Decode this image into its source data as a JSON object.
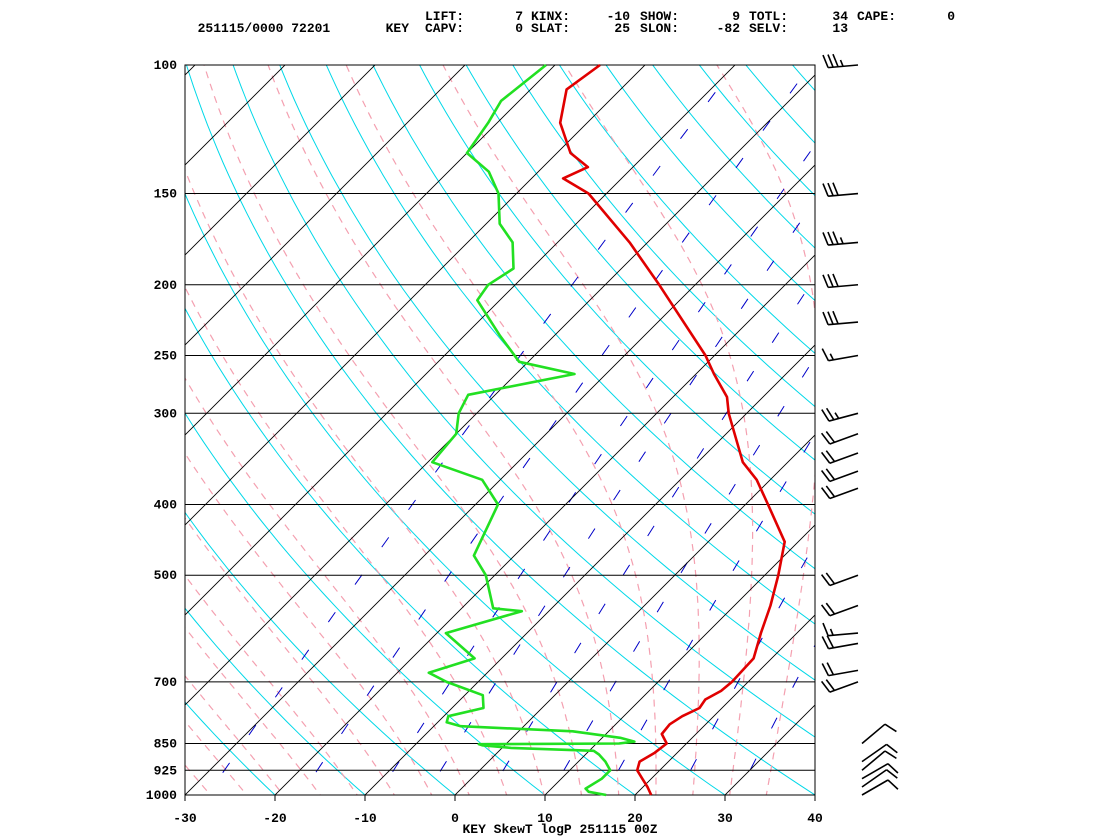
{
  "header": {
    "station_time": "251115/0000 72201",
    "station_id": "KEY",
    "indices_row1": [
      {
        "label": "LIFT:",
        "value": "7"
      },
      {
        "label": "KINX:",
        "value": "-10"
      },
      {
        "label": "SHOW:",
        "value": "9"
      },
      {
        "label": "TOTL:",
        "value": "34"
      },
      {
        "label": "CAPE:",
        "value": "0"
      }
    ],
    "indices_row2": [
      {
        "label": "CAPV:",
        "value": "0"
      },
      {
        "label": "SLAT:",
        "value": "25"
      },
      {
        "label": "SLON:",
        "value": "-82"
      },
      {
        "label": "SELV:",
        "value": "13"
      }
    ]
  },
  "footer_title": "KEY SkewT logP 251115 00Z",
  "colors": {
    "temperature": "#e00000",
    "dewpoint": "#22e022",
    "isotherm": "#000000",
    "isobar": "#000000",
    "dry_adiabat": "#00d8e8",
    "moist_adiabat": "#f4a0b0",
    "mixing_ratio": "#0000c8",
    "wind_barb": "#000000"
  },
  "chart_data": {
    "type": "skewt",
    "title": "KEY SkewT logP 251115 00Z",
    "pressure_levels_labeled": [
      100,
      150,
      200,
      250,
      300,
      400,
      500,
      700,
      850,
      925,
      1000
    ],
    "pressure_range": [
      1000,
      100
    ],
    "temperature_range": [
      -30,
      40
    ],
    "x_ticks": [
      -30,
      -20,
      -10,
      0,
      10,
      20,
      30,
      40
    ],
    "temperature_profile": [
      {
        "p": 1000,
        "t": 21.8
      },
      {
        "p": 975,
        "t": 20.5
      },
      {
        "p": 950,
        "t": 19.0
      },
      {
        "p": 925,
        "t": 17.5
      },
      {
        "p": 900,
        "t": 16.8
      },
      {
        "p": 875,
        "t": 17.5
      },
      {
        "p": 850,
        "t": 17.8
      },
      {
        "p": 825,
        "t": 16.2
      },
      {
        "p": 800,
        "t": 16.0
      },
      {
        "p": 780,
        "t": 16.5
      },
      {
        "p": 760,
        "t": 17.5
      },
      {
        "p": 740,
        "t": 17.2
      },
      {
        "p": 720,
        "t": 18.0
      },
      {
        "p": 700,
        "t": 18.2
      },
      {
        "p": 650,
        "t": 18.0
      },
      {
        "p": 600,
        "t": 16.0
      },
      {
        "p": 550,
        "t": 14.0
      },
      {
        "p": 500,
        "t": 11.5
      },
      {
        "p": 450,
        "t": 8.5
      },
      {
        "p": 400,
        "t": 2.5
      },
      {
        "p": 370,
        "t": -1.5
      },
      {
        "p": 350,
        "t": -5.0
      },
      {
        "p": 300,
        "t": -12.0
      },
      {
        "p": 285,
        "t": -14.0
      },
      {
        "p": 265,
        "t": -18.0
      },
      {
        "p": 250,
        "t": -21.0
      },
      {
        "p": 200,
        "t": -34.0
      },
      {
        "p": 175,
        "t": -42.0
      },
      {
        "p": 150,
        "t": -52.0
      },
      {
        "p": 143,
        "t": -56.5
      },
      {
        "p": 138,
        "t": -55.0
      },
      {
        "p": 132,
        "t": -58.5
      },
      {
        "p": 120,
        "t": -63.0
      },
      {
        "p": 108,
        "t": -66.0
      },
      {
        "p": 100,
        "t": -65.0
      }
    ],
    "dewpoint_profile": [
      {
        "p": 1000,
        "t": 16.8
      },
      {
        "p": 990,
        "t": 14.5
      },
      {
        "p": 980,
        "t": 13.8
      },
      {
        "p": 950,
        "t": 14.5
      },
      {
        "p": 925,
        "t": 14.5
      },
      {
        "p": 900,
        "t": 13.0
      },
      {
        "p": 880,
        "t": 11.5
      },
      {
        "p": 870,
        "t": 10.5
      },
      {
        "p": 862,
        "t": 1.0
      },
      {
        "p": 855,
        "t": -2.5
      },
      {
        "p": 852,
        "t": -3.0
      },
      {
        "p": 850,
        "t": 12.5
      },
      {
        "p": 845,
        "t": 14.0
      },
      {
        "p": 835,
        "t": 12.0
      },
      {
        "p": 818,
        "t": 6.0
      },
      {
        "p": 805,
        "t": -7.0
      },
      {
        "p": 795,
        "t": -9.0
      },
      {
        "p": 780,
        "t": -9.5
      },
      {
        "p": 760,
        "t": -6.5
      },
      {
        "p": 730,
        "t": -8.0
      },
      {
        "p": 700,
        "t": -13.5
      },
      {
        "p": 680,
        "t": -16.5
      },
      {
        "p": 650,
        "t": -13.0
      },
      {
        "p": 600,
        "t": -19.0
      },
      {
        "p": 560,
        "t": -13.0
      },
      {
        "p": 555,
        "t": -16.5
      },
      {
        "p": 500,
        "t": -21.0
      },
      {
        "p": 470,
        "t": -24.5
      },
      {
        "p": 400,
        "t": -27.5
      },
      {
        "p": 370,
        "t": -32.0
      },
      {
        "p": 350,
        "t": -39.5
      },
      {
        "p": 320,
        "t": -40.0
      },
      {
        "p": 300,
        "t": -42.0
      },
      {
        "p": 283,
        "t": -43.0
      },
      {
        "p": 265,
        "t": -33.5
      },
      {
        "p": 255,
        "t": -41.0
      },
      {
        "p": 235,
        "t": -46.0
      },
      {
        "p": 210,
        "t": -52.5
      },
      {
        "p": 200,
        "t": -53.0
      },
      {
        "p": 190,
        "t": -52.0
      },
      {
        "p": 175,
        "t": -55.0
      },
      {
        "p": 165,
        "t": -58.5
      },
      {
        "p": 150,
        "t": -62.0
      },
      {
        "p": 140,
        "t": -65.5
      },
      {
        "p": 132,
        "t": -70.0
      },
      {
        "p": 120,
        "t": -71.0
      },
      {
        "p": 112,
        "t": -72.0
      },
      {
        "p": 100,
        "t": -71.0
      }
    ],
    "wind_barbs": [
      {
        "p": 1000,
        "dir": 60,
        "spd_kt": 10
      },
      {
        "p": 975,
        "dir": 55,
        "spd_kt": 10
      },
      {
        "p": 950,
        "dir": 60,
        "spd_kt": 10
      },
      {
        "p": 925,
        "dir": 50,
        "spd_kt": 10
      },
      {
        "p": 900,
        "dir": 55,
        "spd_kt": 10
      },
      {
        "p": 850,
        "dir": 50,
        "spd_kt": 10
      },
      {
        "p": 700,
        "dir": 250,
        "spd_kt": 20
      },
      {
        "p": 675,
        "dir": 260,
        "spd_kt": 20
      },
      {
        "p": 620,
        "dir": 260,
        "spd_kt": 20
      },
      {
        "p": 600,
        "dir": 265,
        "spd_kt": 15
      },
      {
        "p": 550,
        "dir": 250,
        "spd_kt": 20
      },
      {
        "p": 500,
        "dir": 250,
        "spd_kt": 20
      },
      {
        "p": 380,
        "dir": 250,
        "spd_kt": 20
      },
      {
        "p": 360,
        "dir": 250,
        "spd_kt": 20
      },
      {
        "p": 340,
        "dir": 250,
        "spd_kt": 20
      },
      {
        "p": 320,
        "dir": 250,
        "spd_kt": 20
      },
      {
        "p": 300,
        "dir": 255,
        "spd_kt": 25
      },
      {
        "p": 250,
        "dir": 260,
        "spd_kt": 15
      },
      {
        "p": 225,
        "dir": 265,
        "spd_kt": 30
      },
      {
        "p": 200,
        "dir": 265,
        "spd_kt": 30
      },
      {
        "p": 175,
        "dir": 265,
        "spd_kt": 35
      },
      {
        "p": 150,
        "dir": 265,
        "spd_kt": 30
      },
      {
        "p": 100,
        "dir": 265,
        "spd_kt": 35
      }
    ],
    "grid": true
  }
}
